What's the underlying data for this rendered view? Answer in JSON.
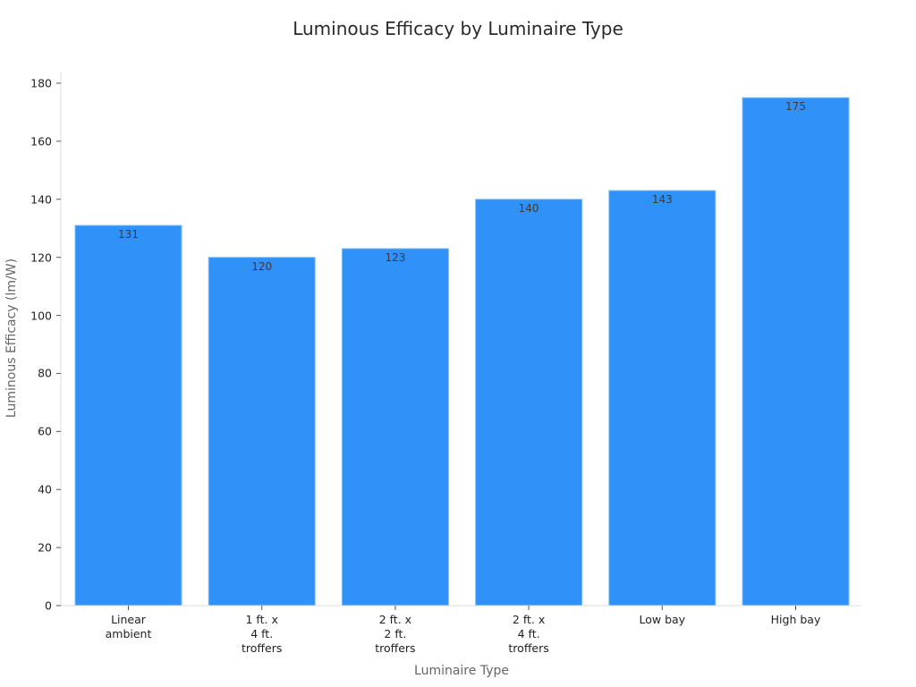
{
  "chart_data": {
    "type": "bar",
    "title": "Luminous Efficacy by Luminaire Type",
    "xlabel": "Luminaire Type",
    "ylabel": "Luminous Efficacy (lm/W)",
    "categories": [
      "Linear\nambient",
      "1 ft. x\n4 ft.\ntroffers",
      "2 ft. x\n2 ft.\ntroffers",
      "2 ft. x\n4 ft.\ntroffers",
      "Low bay",
      "High bay"
    ],
    "values": [
      131,
      120,
      123,
      140,
      143,
      175
    ],
    "data_labels": [
      "131",
      "120",
      "123",
      "140",
      "143",
      "175"
    ],
    "ylim": [
      0,
      180
    ],
    "yticks": [
      0,
      20,
      40,
      60,
      80,
      100,
      120,
      140,
      160,
      180
    ],
    "grid": false,
    "legend": null,
    "bar_color": "#3092f8"
  },
  "title": "Luminous Efficacy by Luminaire Type",
  "xlabel": "Luminaire Type",
  "ylabel": "Luminous Efficacy (lm/W)"
}
